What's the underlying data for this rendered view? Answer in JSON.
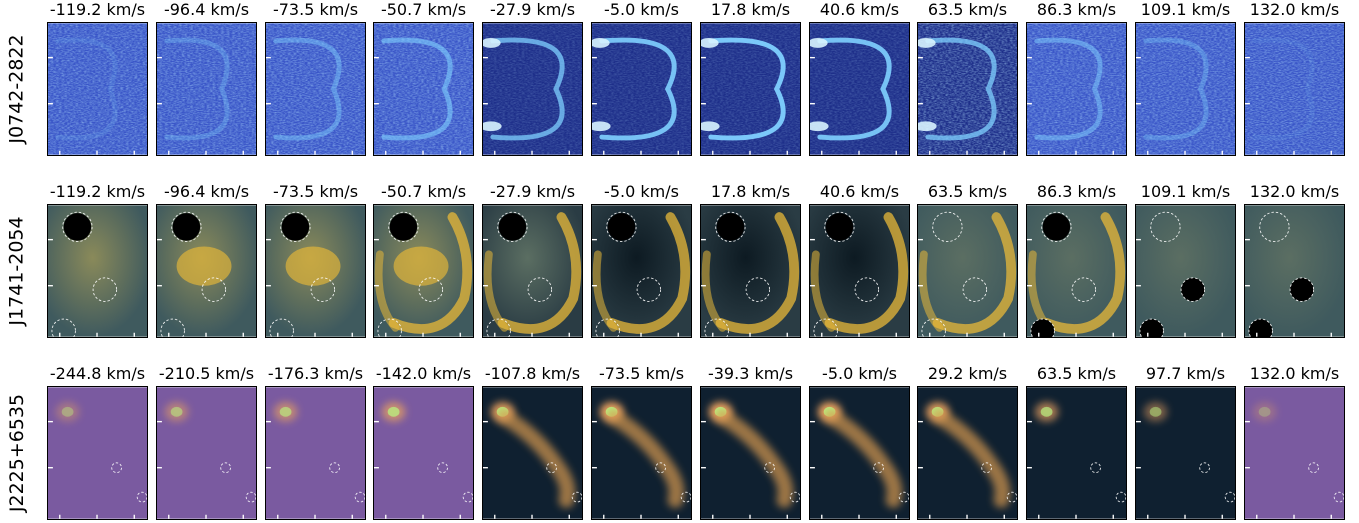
{
  "rows": [
    {
      "label": "J0742-2822",
      "colormap": "blue",
      "velocities": [
        "-119.2 km/s",
        "-96.4 km/s",
        "-73.5 km/s",
        "-50.7 km/s",
        "-27.9 km/s",
        "-5.0 km/s",
        "17.8 km/s",
        "40.6 km/s",
        "63.5 km/s",
        "86.3 km/s",
        "109.1 km/s",
        "132.0 km/s"
      ]
    },
    {
      "label": "J1741-2054",
      "colormap": "cividis",
      "velocities": [
        "-119.2 km/s",
        "-96.4 km/s",
        "-73.5 km/s",
        "-50.7 km/s",
        "-27.9 km/s",
        "-5.0 km/s",
        "17.8 km/s",
        "40.6 km/s",
        "63.5 km/s",
        "86.3 km/s",
        "109.1 km/s",
        "132.0 km/s"
      ]
    },
    {
      "label": "J2225+6535",
      "colormap": "magma-green",
      "velocities": [
        "-244.8 km/s",
        "-210.5 km/s",
        "-176.3 km/s",
        "-142.0 km/s",
        "-107.8 km/s",
        "-73.5 km/s",
        "-39.3 km/s",
        "-5.0 km/s",
        "29.2 km/s",
        "63.5 km/s",
        "97.7 km/s",
        "132.0 km/s"
      ]
    }
  ],
  "colors": {
    "blue_bg": "#3a56c8",
    "blue_bright": "#7fd0ff",
    "cividis_bg": "#3f5a5e",
    "cividis_bright": "#e8b838",
    "magma_bg": "#7a5aa0",
    "magma_dark": "#0f2030",
    "magma_bright": "#b8f080"
  }
}
